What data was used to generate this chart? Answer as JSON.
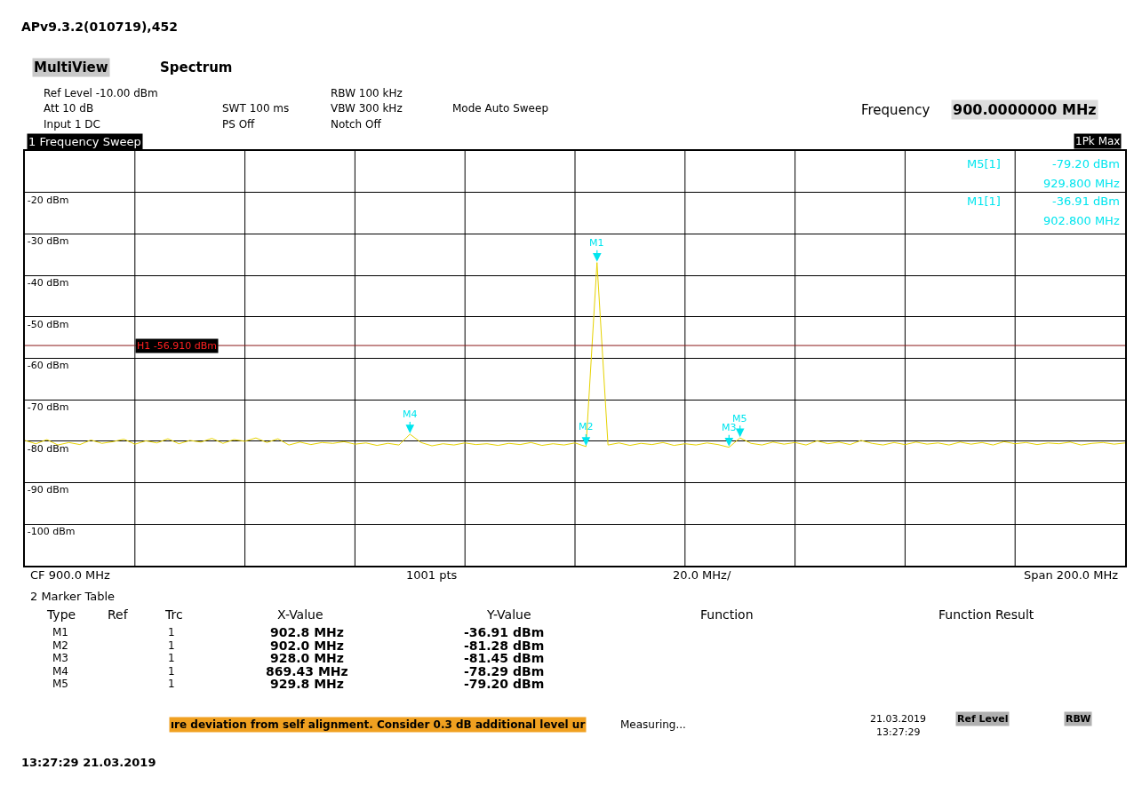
{
  "chart_data": {
    "type": "line",
    "title": "APv9.3.2(010719),452",
    "categories": [
      null,
      null,
      null,
      null,
      null,
      null,
      null,
      null,
      null,
      null,
      null,
      null,
      null,
      null,
      null,
      null,
      null,
      null,
      null,
      null,
      null,
      null,
      null,
      null,
      null,
      null,
      null,
      null,
      null,
      null,
      null,
      null,
      null,
      null,
      null,
      null,
      null,
      null,
      null,
      null,
      null,
      null,
      null,
      null,
      null,
      null,
      null,
      null,
      null,
      null,
      null,
      null,
      null,
      null,
      null,
      null,
      null,
      null,
      null,
      null,
      null,
      null,
      null,
      null,
      null,
      null,
      null,
      null,
      null,
      null,
      null,
      null,
      null,
      null,
      null,
      null,
      null,
      null,
      null,
      null,
      null,
      null,
      null,
      null,
      null,
      null,
      null,
      null,
      null,
      null,
      null,
      null,
      null,
      null,
      null,
      null,
      null,
      null,
      null,
      null,
      null
    ],
    "ylim": [
      -110,
      -10
    ],
    "yticks": [
      {
        "value": -10,
        "label": null
      },
      {
        "value": -20,
        "label": "-20 dBm"
      },
      {
        "value": -30,
        "label": "-30 dBm"
      },
      {
        "value": -40,
        "label": "-40 dBm"
      },
      {
        "value": -50,
        "label": "-50 dBm"
      },
      {
        "value": -60,
        "label": "-60 dBm"
      },
      {
        "value": -70,
        "label": "-70 dBm"
      },
      {
        "value": -80,
        "label": "-80 dBm"
      },
      {
        "value": -90,
        "label": "-90 dBm"
      },
      {
        "value": -100,
        "label": "-100 dBm"
      },
      {
        "value": -110,
        "label": null
      }
    ],
    "tick_labels": "y",
    "grid": true,
    "line_style": "solid",
    "series": [
      {
        "color": "#e6d200",
        "values": [
          -79.8,
          -80.6,
          -79.6,
          -80.9,
          -80.3,
          -80.8,
          -79.7,
          -80.5,
          -80.1,
          -79.5,
          -80.7,
          -79.9,
          -80.4,
          -79.4,
          -80.6,
          -79.8,
          -80.2,
          -79.3,
          -80.5,
          -79.6,
          -80.0,
          -79.2,
          -80.3,
          -79.4,
          -80.9,
          -80.2,
          -80.8,
          -80.3,
          -80.5,
          -80.1,
          -80.7,
          -80.4,
          -81.0,
          -80.5,
          -80.9,
          -78.29,
          -80.3,
          -81.1,
          -80.6,
          -80.9,
          -80.4,
          -80.8,
          -80.6,
          -81.0,
          -80.5,
          -80.8,
          -80.3,
          -81.0,
          -80.6,
          -80.9,
          -80.4,
          -81.28,
          -36.91,
          -80.9,
          -80.4,
          -81.0,
          -80.5,
          -80.8,
          -80.3,
          -81.0,
          -80.6,
          -80.9,
          -80.4,
          -80.8,
          -81.45,
          -79.2,
          -80.5,
          -80.9,
          -80.2,
          -80.7,
          -80.3,
          -80.9,
          -79.9,
          -80.6,
          -80.2,
          -80.8,
          -79.8,
          -80.5,
          -80.9,
          -80.3,
          -80.8,
          -80.2,
          -80.7,
          -80.4,
          -80.9,
          -80.2,
          -80.7,
          -80.3,
          -80.9,
          -80.1,
          -80.6,
          -80.3,
          -80.8,
          -80.4,
          -80.6,
          -80.2,
          -80.9,
          -80.5,
          -80.3,
          -80.7,
          -80.4
        ]
      }
    ],
    "ref_lines": [
      {
        "axis": "y",
        "value": -56.91,
        "label": "H1 -56.910 dBm",
        "color": "#8b1a1a",
        "line_style": "solid"
      }
    ],
    "annotations": [
      "MultiView",
      "Spectrum",
      "Ref Level -10.00 dBm",
      "Att 10 dB",
      "Input 1 DC",
      "SWT 100 ms",
      "PS Off",
      "RBW 100 kHz",
      "VBW 300 kHz",
      "Notch Off",
      "Mode Auto Sweep",
      "Frequency",
      "900.0000000 MHz",
      "1 Frequency Sweep",
      "1Pk Max",
      "M5[1]",
      "-79.20 dBm",
      "929.800 MHz",
      "M1[1]",
      "-36.91 dBm",
      "902.800 MHz",
      "CF 900.0 MHz",
      "1001 pts",
      "20.0 MHz/",
      "Span 200.0 MHz",
      "2 Marker Table",
      "Type",
      "Ref",
      "Trc",
      "X-Value",
      "Y-Value",
      "Function",
      "Function Result",
      "M1",
      "1",
      "902.8 MHz",
      "-36.91 dBm",
      "M2",
      "1",
      "902.0 MHz",
      "-81.28 dBm",
      "M3",
      "1",
      "928.0 MHz",
      "-81.45 dBm",
      "M4",
      "1",
      "869.43 MHz",
      "-78.29 dBm",
      "M5",
      "1",
      "929.8 MHz",
      "-79.20 dBm",
      "ıre deviation from self alignment. Consider 0.3 dB additional level ur",
      "Measuring...",
      "21.03.2019",
      "13:27:29",
      "Ref Level",
      "RBW",
      "13:27:29 21.03.2019",
      "M1",
      "M2",
      "M3",
      "M4",
      "M5"
    ]
  }
}
